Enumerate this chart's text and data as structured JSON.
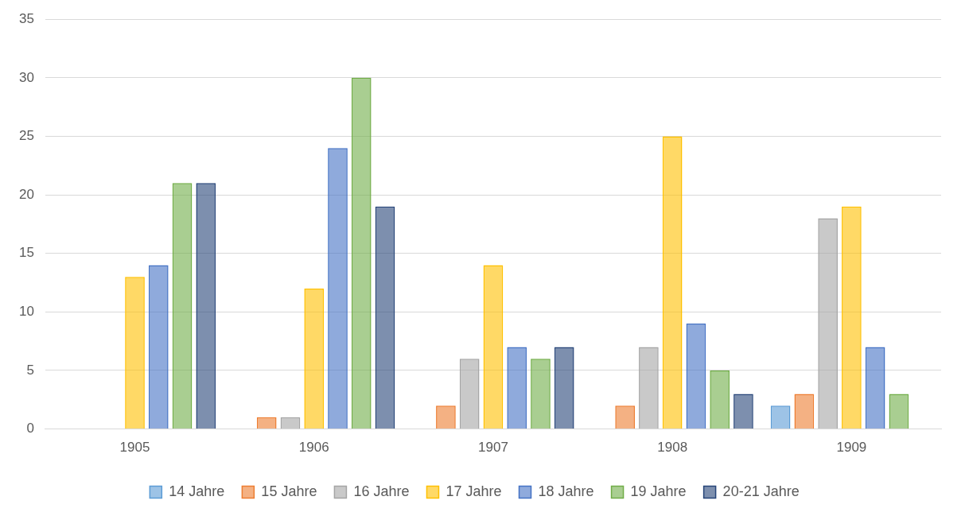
{
  "chart_data": {
    "type": "bar",
    "categories": [
      "1905",
      "1906",
      "1907",
      "1908",
      "1909"
    ],
    "series": [
      {
        "name": "14 Jahre",
        "color": "#5b9bd5",
        "values": [
          0,
          0,
          0,
          0,
          2
        ]
      },
      {
        "name": "15 Jahre",
        "color": "#ed7d31",
        "values": [
          0,
          1,
          2,
          2,
          3
        ]
      },
      {
        "name": "16 Jahre",
        "color": "#a5a5a5",
        "values": [
          0,
          1,
          6,
          7,
          18
        ]
      },
      {
        "name": "17 Jahre",
        "color": "#ffc000",
        "values": [
          13,
          12,
          14,
          25,
          19
        ]
      },
      {
        "name": "18 Jahre",
        "color": "#4472c4",
        "values": [
          14,
          24,
          7,
          9,
          7
        ]
      },
      {
        "name": "19 Jahre",
        "color": "#70ad47",
        "values": [
          21,
          30,
          6,
          5,
          3
        ]
      },
      {
        "name": "20-21 Jahre",
        "color": "#264478",
        "values": [
          21,
          19,
          7,
          3,
          0
        ]
      }
    ],
    "ylim": [
      0,
      35
    ],
    "yticks": [
      0,
      5,
      10,
      15,
      20,
      25,
      30,
      35
    ],
    "grid": "y",
    "legend": "bottom"
  }
}
